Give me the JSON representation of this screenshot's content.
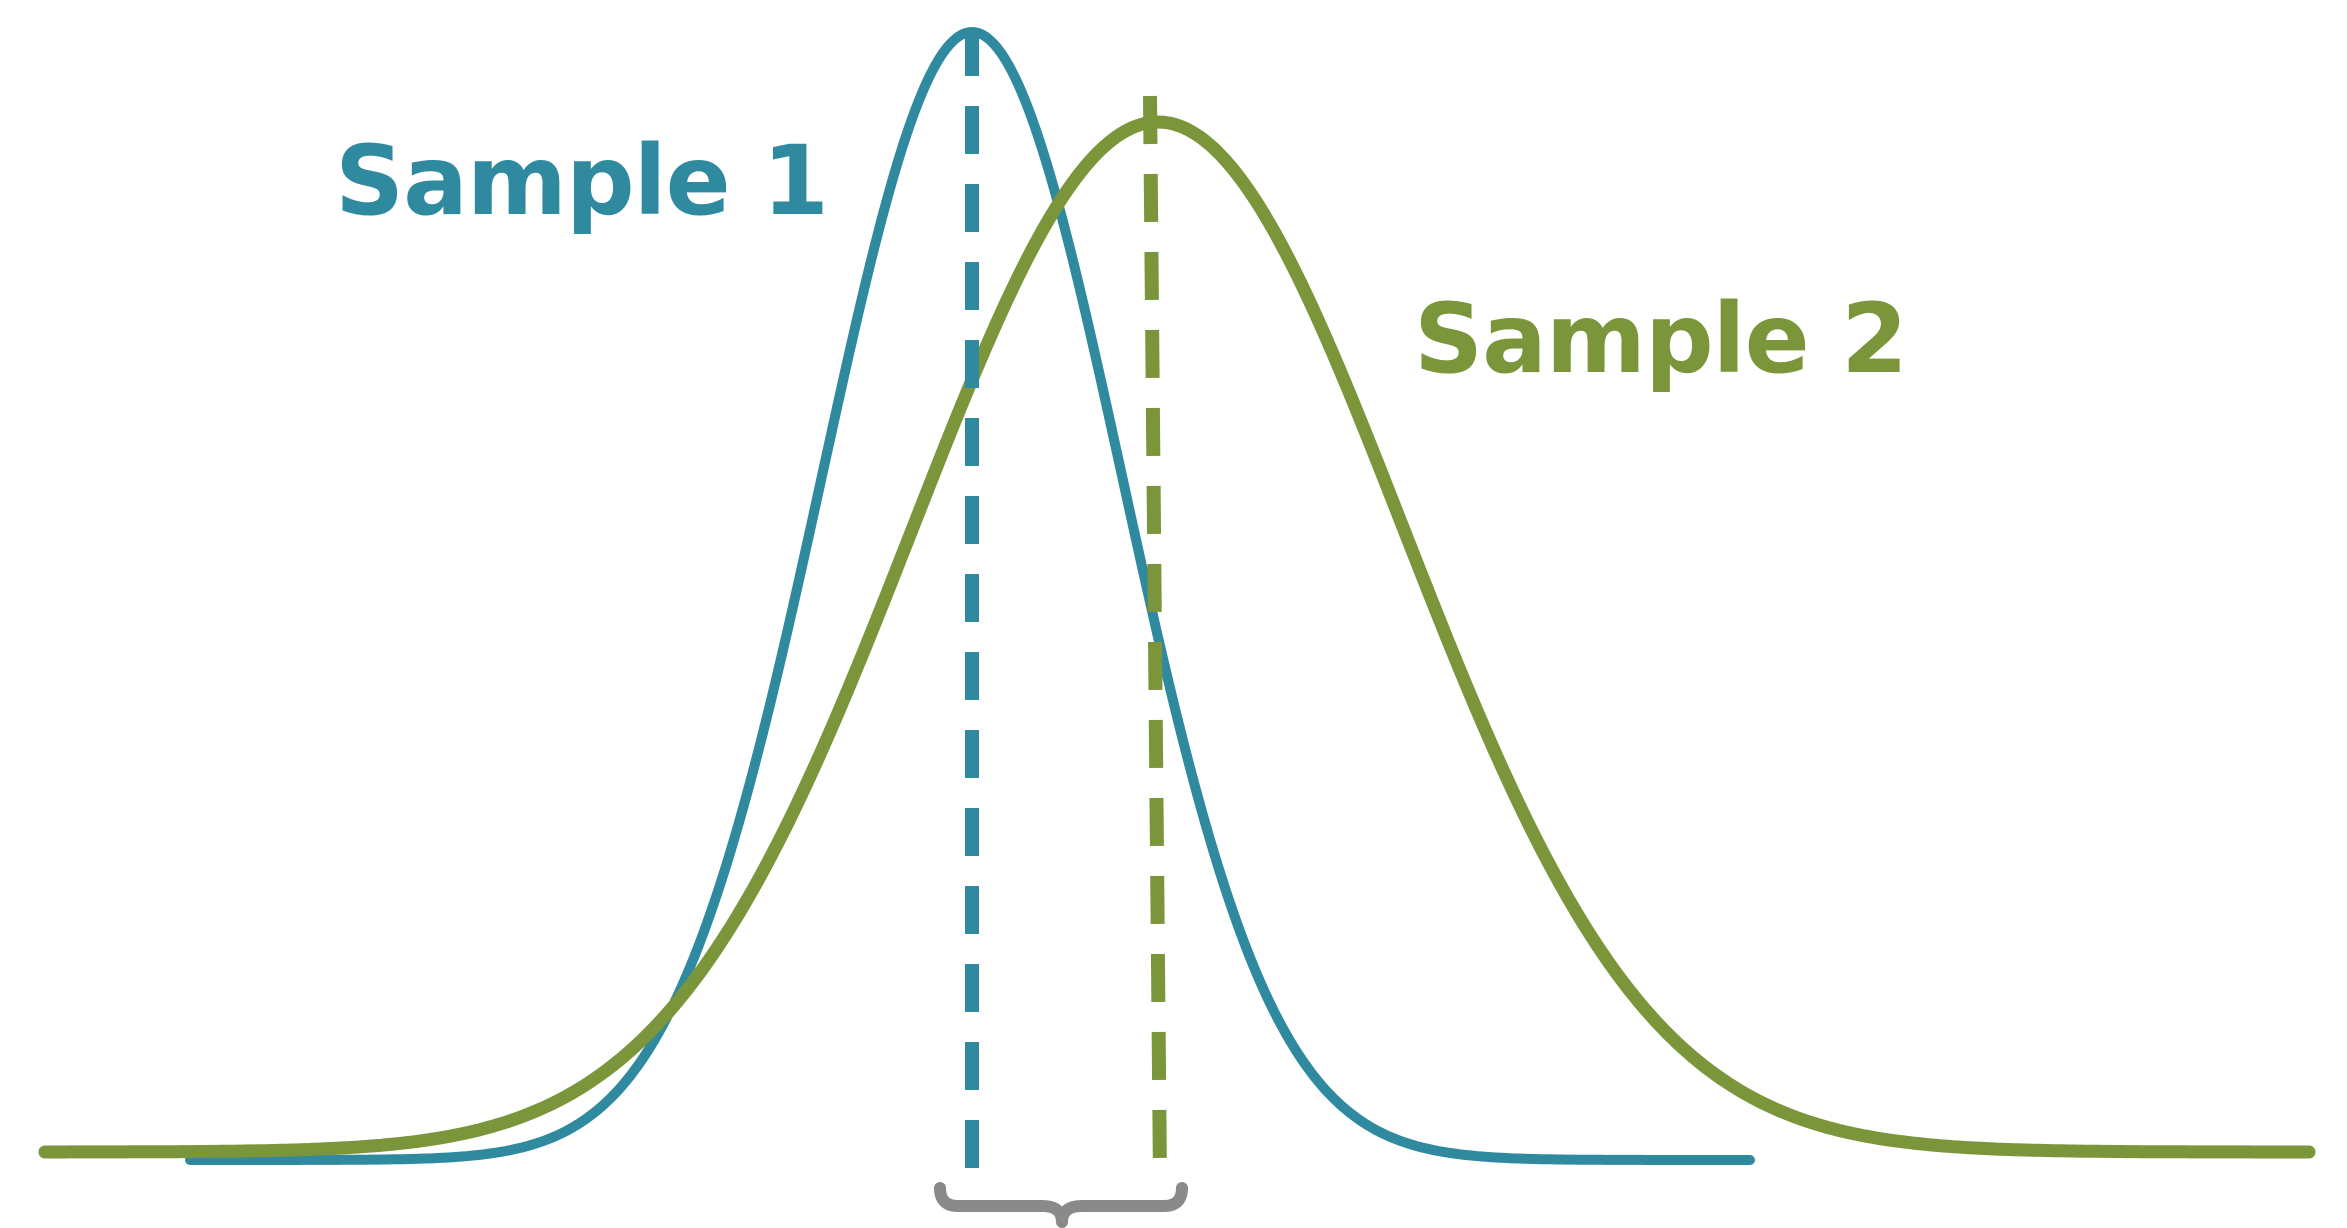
{
  "labels": {
    "sample1": "Sample 1",
    "sample2": "Sample 2"
  },
  "colors": {
    "sample1": "#2f8aa0",
    "sample2": "#7a953a",
    "brace": "#8a8a8a",
    "background": "#ffffff"
  },
  "curves": {
    "sample1": {
      "mean": 0,
      "sd": 1
    },
    "sample2": {
      "mean": 1,
      "sd": 1.6
    }
  },
  "annotations": {
    "mean_difference_bracket": true
  }
}
